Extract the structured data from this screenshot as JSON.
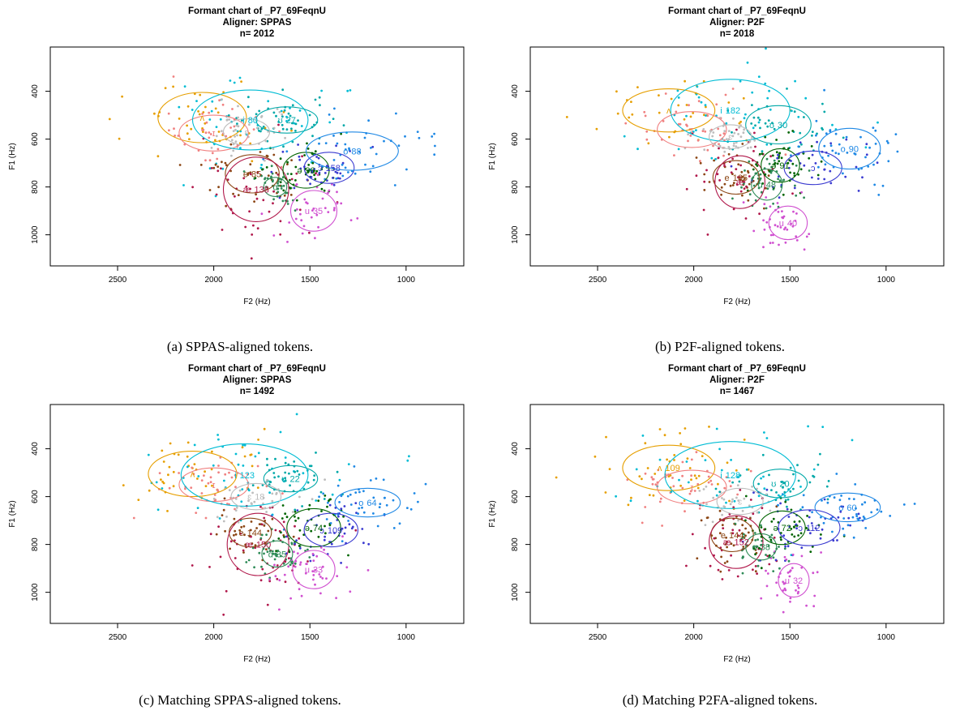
{
  "chart_data": [
    {
      "type": "scatter",
      "title": "Formant chart of _P7_69FeqnU",
      "subtitle": "Aligner: SPPAS",
      "n_label": "n= 2012",
      "xlabel": "F2 (Hz)",
      "ylabel": "F1 (Hz)",
      "xlim": [
        2850,
        700
      ],
      "ylim": [
        1130,
        215
      ],
      "xticks": [
        2500,
        2000,
        1500,
        1000
      ],
      "yticks": [
        400,
        600,
        800,
        1000
      ],
      "caption": "(a) SPPAS-aligned tokens.",
      "vowels": [
        {
          "label": "ʌ",
          "count": "",
          "f2": 2060,
          "f1": 510,
          "rx": 230,
          "ry": 105,
          "color": "#e69f00"
        },
        {
          "label": "ɪ",
          "count": "",
          "f2": 2000,
          "f1": 575,
          "rx": 180,
          "ry": 75,
          "color": "#f08080"
        },
        {
          "label": "i",
          "count": "80",
          "f2": 1810,
          "f1": 520,
          "rx": 300,
          "ry": 125,
          "color": "#00bcd4"
        },
        {
          "label": "ʊ",
          "count": "27",
          "f2": 1620,
          "f1": 520,
          "rx": 160,
          "ry": 55,
          "color": "#00a8a8"
        },
        {
          "label": "ɛ",
          "count": "",
          "f2": 1830,
          "f1": 570,
          "rx": 120,
          "ry": 55,
          "color": "#bdbdbd"
        },
        {
          "label": "e",
          "count": "85",
          "f2": 1800,
          "f1": 745,
          "rx": 140,
          "ry": 80,
          "color": "#8b4513"
        },
        {
          "label": "æ",
          "count": "138",
          "f2": 1780,
          "f1": 810,
          "rx": 170,
          "ry": 135,
          "color": "#b0174a"
        },
        {
          "label": "ɑ",
          "count": "",
          "f2": 1680,
          "f1": 800,
          "rx": 60,
          "ry": 40,
          "color": "#2e8b57"
        },
        {
          "label": "ə",
          "count": "96",
          "f2": 1520,
          "f1": 730,
          "rx": 120,
          "ry": 75,
          "color": "#006400"
        },
        {
          "label": "ɔ",
          "count": "158",
          "f2": 1400,
          "f1": 720,
          "rx": 130,
          "ry": 65,
          "color": "#3a3ad0"
        },
        {
          "label": "o",
          "count": "88",
          "f2": 1280,
          "f1": 650,
          "rx": 240,
          "ry": 80,
          "color": "#1e88e5"
        },
        {
          "label": "u",
          "count": "35",
          "f2": 1480,
          "f1": 900,
          "rx": 120,
          "ry": 85,
          "color": "#d050d0"
        }
      ]
    },
    {
      "type": "scatter",
      "title": "Formant chart of _P7_69FeqnU",
      "subtitle": "Aligner: P2F",
      "n_label": "n= 2018",
      "xlabel": "F2 (Hz)",
      "ylabel": "F1 (Hz)",
      "xlim": [
        2850,
        700
      ],
      "ylim": [
        1130,
        215
      ],
      "xticks": [
        2500,
        2000,
        1500,
        1000
      ],
      "yticks": [
        400,
        600,
        800,
        1000
      ],
      "caption": "(b) P2F-aligned tokens.",
      "vowels": [
        {
          "label": "ʌ",
          "count": "",
          "f2": 2130,
          "f1": 480,
          "rx": 240,
          "ry": 90,
          "color": "#e69f00"
        },
        {
          "label": "ɪ",
          "count": "",
          "f2": 2010,
          "f1": 560,
          "rx": 180,
          "ry": 75,
          "color": "#f08080"
        },
        {
          "label": "i",
          "count": "182",
          "f2": 1810,
          "f1": 480,
          "rx": 310,
          "ry": 130,
          "color": "#00bcd4"
        },
        {
          "label": "ʊ",
          "count": "30",
          "f2": 1560,
          "f1": 540,
          "rx": 170,
          "ry": 80,
          "color": "#00a8a8"
        },
        {
          "label": "ɛ",
          "count": "",
          "f2": 1810,
          "f1": 590,
          "rx": 110,
          "ry": 50,
          "color": "#bdbdbd"
        },
        {
          "label": "e",
          "count": "165",
          "f2": 1780,
          "f1": 760,
          "rx": 120,
          "ry": 70,
          "color": "#8b4513"
        },
        {
          "label": "æ",
          "count": "",
          "f2": 1760,
          "f1": 780,
          "rx": 130,
          "ry": 110,
          "color": "#b0174a"
        },
        {
          "label": "ɑ",
          "count": "48",
          "f2": 1620,
          "f1": 790,
          "rx": 80,
          "ry": 65,
          "color": "#2e8b57"
        },
        {
          "label": "ə",
          "count": "91",
          "f2": 1550,
          "f1": 710,
          "rx": 100,
          "ry": 70,
          "color": "#006400"
        },
        {
          "label": "ɔ",
          "count": "",
          "f2": 1380,
          "f1": 720,
          "rx": 150,
          "ry": 70,
          "color": "#3a3ad0"
        },
        {
          "label": "o",
          "count": "90",
          "f2": 1190,
          "f1": 640,
          "rx": 160,
          "ry": 85,
          "color": "#1e88e5"
        },
        {
          "label": "u",
          "count": "40",
          "f2": 1510,
          "f1": 950,
          "rx": 100,
          "ry": 70,
          "color": "#d050d0"
        }
      ]
    },
    {
      "type": "scatter",
      "title": "Formant chart of _P7_69FeqnU",
      "subtitle": "Aligner: SPPAS",
      "n_label": "n= 1492",
      "xlabel": "F2 (Hz)",
      "ylabel": "F1 (Hz)",
      "xlim": [
        2850,
        700
      ],
      "ylim": [
        1130,
        215
      ],
      "xticks": [
        2500,
        2000,
        1500,
        1000
      ],
      "yticks": [
        400,
        600,
        800,
        1000
      ],
      "caption": "(c) Matching SPPAS-aligned tokens.",
      "vowels": [
        {
          "label": "ʌ",
          "count": "",
          "f2": 2110,
          "f1": 505,
          "rx": 230,
          "ry": 95,
          "color": "#e69f00"
        },
        {
          "label": "ɪ",
          "count": "",
          "f2": 2000,
          "f1": 550,
          "rx": 180,
          "ry": 70,
          "color": "#f08080"
        },
        {
          "label": "i",
          "count": "123",
          "f2": 1840,
          "f1": 510,
          "rx": 330,
          "ry": 130,
          "color": "#00bcd4"
        },
        {
          "label": "ʊ",
          "count": "22",
          "f2": 1600,
          "f1": 525,
          "rx": 140,
          "ry": 55,
          "color": "#00a8a8"
        },
        {
          "label": "ɛ",
          "count": "18",
          "f2": 1780,
          "f1": 600,
          "rx": 130,
          "ry": 55,
          "color": "#bdbdbd"
        },
        {
          "label": "e",
          "count": "144",
          "f2": 1810,
          "f1": 750,
          "rx": 110,
          "ry": 60,
          "color": "#8b4513"
        },
        {
          "label": "æ",
          "count": "150",
          "f2": 1770,
          "f1": 800,
          "rx": 160,
          "ry": 130,
          "color": "#b0174a"
        },
        {
          "label": "ɑ",
          "count": "35",
          "f2": 1670,
          "f1": 840,
          "rx": 80,
          "ry": 55,
          "color": "#2e8b57"
        },
        {
          "label": "ə",
          "count": "74",
          "f2": 1480,
          "f1": 730,
          "rx": 140,
          "ry": 80,
          "color": "#006400"
        },
        {
          "label": "ɔ",
          "count": "109",
          "f2": 1390,
          "f1": 740,
          "rx": 140,
          "ry": 70,
          "color": "#3a3ad0"
        },
        {
          "label": "o",
          "count": "64",
          "f2": 1200,
          "f1": 625,
          "rx": 170,
          "ry": 60,
          "color": "#1e88e5"
        },
        {
          "label": "u",
          "count": "33",
          "f2": 1480,
          "f1": 905,
          "rx": 110,
          "ry": 80,
          "color": "#d050d0"
        }
      ]
    },
    {
      "type": "scatter",
      "title": "Formant chart of _P7_69FeqnU",
      "subtitle": "Aligner: P2F",
      "n_label": "n= 1467",
      "xlabel": "F2 (Hz)",
      "ylabel": "F1 (Hz)",
      "xlim": [
        2850,
        700
      ],
      "ylim": [
        1130,
        215
      ],
      "xticks": [
        2500,
        2000,
        1500,
        1000
      ],
      "yticks": [
        400,
        600,
        800,
        1000
      ],
      "caption": "(d) Matching P2FA-aligned tokens.",
      "vowels": [
        {
          "label": "ʌ",
          "count": "109",
          "f2": 2130,
          "f1": 480,
          "rx": 240,
          "ry": 95,
          "color": "#e69f00"
        },
        {
          "label": "ɪ",
          "count": "",
          "f2": 2010,
          "f1": 560,
          "rx": 180,
          "ry": 70,
          "color": "#f08080"
        },
        {
          "label": "i",
          "count": "128",
          "f2": 1810,
          "f1": 510,
          "rx": 340,
          "ry": 140,
          "color": "#00bcd4"
        },
        {
          "label": "ʊ",
          "count": "20",
          "f2": 1550,
          "f1": 545,
          "rx": 140,
          "ry": 60,
          "color": "#00a8a8"
        },
        {
          "label": "ɛ",
          "count": "",
          "f2": 1760,
          "f1": 620,
          "rx": 120,
          "ry": 55,
          "color": "#bdbdbd"
        },
        {
          "label": "e",
          "count": "144",
          "f2": 1800,
          "f1": 760,
          "rx": 110,
          "ry": 70,
          "color": "#8b4513"
        },
        {
          "label": "æ",
          "count": "152",
          "f2": 1780,
          "f1": 790,
          "rx": 140,
          "ry": 110,
          "color": "#b0174a"
        },
        {
          "label": "ɑ",
          "count": "38",
          "f2": 1650,
          "f1": 810,
          "rx": 80,
          "ry": 55,
          "color": "#2e8b57"
        },
        {
          "label": "ə",
          "count": "72",
          "f2": 1540,
          "f1": 730,
          "rx": 120,
          "ry": 70,
          "color": "#006400"
        },
        {
          "label": "ɔ",
          "count": "112",
          "f2": 1400,
          "f1": 730,
          "rx": 160,
          "ry": 75,
          "color": "#3a3ad0"
        },
        {
          "label": "o",
          "count": "60",
          "f2": 1200,
          "f1": 645,
          "rx": 170,
          "ry": 60,
          "color": "#1e88e5"
        },
        {
          "label": "u",
          "count": "32",
          "f2": 1480,
          "f1": 950,
          "rx": 80,
          "ry": 70,
          "color": "#d050d0"
        }
      ]
    }
  ]
}
